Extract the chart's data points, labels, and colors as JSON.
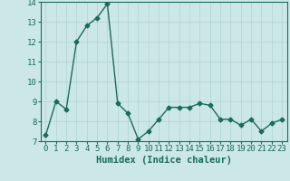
{
  "x": [
    0,
    1,
    2,
    3,
    4,
    5,
    6,
    7,
    8,
    9,
    10,
    11,
    12,
    13,
    14,
    15,
    16,
    17,
    18,
    19,
    20,
    21,
    22,
    23
  ],
  "y": [
    7.3,
    9.0,
    8.6,
    12.0,
    12.8,
    13.2,
    13.9,
    8.9,
    8.4,
    7.1,
    7.5,
    8.1,
    8.7,
    8.7,
    8.7,
    8.9,
    8.8,
    8.1,
    8.1,
    7.8,
    8.1,
    7.5,
    7.9,
    8.1
  ],
  "xlabel": "Humidex (Indice chaleur)",
  "xlim": [
    -0.5,
    23.5
  ],
  "ylim": [
    7,
    14
  ],
  "yticks": [
    7,
    8,
    9,
    10,
    11,
    12,
    13,
    14
  ],
  "xticks": [
    0,
    1,
    2,
    3,
    4,
    5,
    6,
    7,
    8,
    9,
    10,
    11,
    12,
    13,
    14,
    15,
    16,
    17,
    18,
    19,
    20,
    21,
    22,
    23
  ],
  "line_color": "#1a6b5a",
  "marker": "D",
  "marker_size": 2.5,
  "bg_color": "#cce8e6",
  "grid_color": "#add4d1",
  "tick_fontsize": 6.5,
  "xlabel_fontsize": 7.5
}
